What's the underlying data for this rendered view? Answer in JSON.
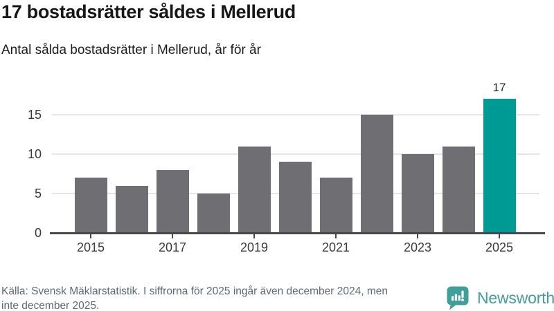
{
  "header": {
    "title": "17 bostadsrätter såldes i Mellerud",
    "subtitle": "Antal sålda bostadsrätter i Mellerud, år för år"
  },
  "chart_data": {
    "type": "bar",
    "categories": [
      2015,
      2016,
      2017,
      2018,
      2019,
      2020,
      2021,
      2022,
      2023,
      2024,
      2025
    ],
    "values": [
      7,
      6,
      8,
      5,
      11,
      9,
      7,
      15,
      10,
      11,
      17
    ],
    "title": "17 bostadsrätter såldes i Mellerud",
    "subtitle": "Antal sålda bostadsrätter i Mellerud, år för år",
    "xlabel": "",
    "ylabel": "",
    "ylim": [
      0,
      17.5
    ],
    "y_ticks": [
      0,
      5,
      10,
      15
    ],
    "y_tick_labels": [
      "0",
      "5",
      "10",
      "15"
    ],
    "x_ticks": [
      2015,
      2017,
      2019,
      2021,
      2023,
      2025
    ],
    "grid": true,
    "bar_color": "#6e6e73",
    "highlight_index": 10,
    "highlight_color": "#009a94",
    "annotation": {
      "index": 10,
      "label": "17"
    }
  },
  "footer": {
    "source_lines": [
      "Källa: Svensk Mäklarstatistik. I siffrorna för 2025 ingår även december 2024, men",
      "inte december 2025."
    ]
  },
  "logo": {
    "brand": "Newsworthy",
    "color": "#3f9e97",
    "icon": "newsworthy-bubble-chart-icon"
  }
}
